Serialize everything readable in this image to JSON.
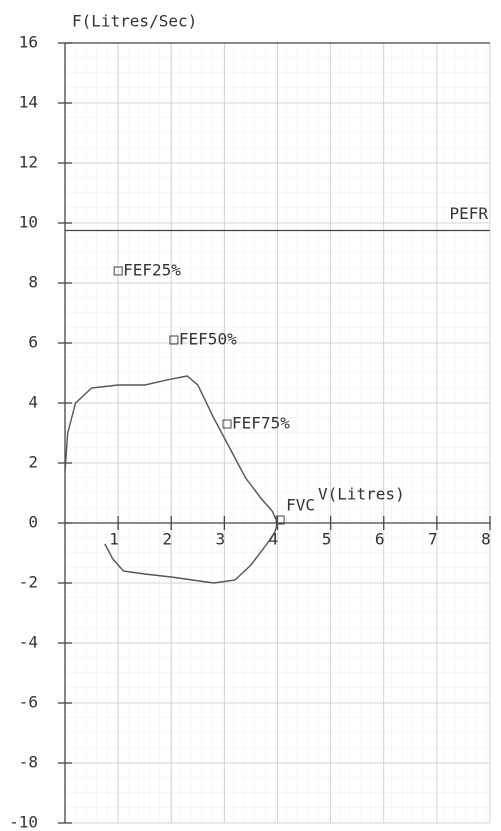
{
  "chart_data": {
    "type": "line",
    "y_label": "F(Litres/Sec)",
    "x_label": "V(Litres)",
    "xlim": [
      0,
      8
    ],
    "xticks": [
      1,
      2,
      3,
      4,
      5,
      6,
      7,
      8
    ],
    "ylim": [
      -10,
      16
    ],
    "yticks": [
      -10,
      -8,
      -6,
      -4,
      -2,
      0,
      2,
      4,
      6,
      8,
      10,
      12,
      14,
      16
    ],
    "grid": true,
    "series": [
      {
        "color": "#555555",
        "x": [
          0.0,
          0.05,
          0.2,
          0.5,
          1.0,
          1.5,
          2.0,
          2.3,
          2.5,
          2.8,
          3.1,
          3.4,
          3.7,
          3.9,
          4.0,
          3.95,
          3.8,
          3.5,
          3.2,
          2.8,
          2.4,
          2.0,
          1.5,
          1.1,
          0.9,
          0.75
        ],
        "values": [
          1.7,
          3.0,
          4.0,
          4.5,
          4.6,
          4.6,
          4.8,
          4.9,
          4.6,
          3.5,
          2.5,
          1.5,
          0.8,
          0.4,
          0.0,
          -0.3,
          -0.7,
          -1.4,
          -1.9,
          -2.0,
          -1.9,
          -1.8,
          -1.7,
          -1.6,
          -1.2,
          -0.7
        ]
      }
    ],
    "reference_line": {
      "label": "PEFR",
      "value": 9.75
    },
    "markers": [
      {
        "label": "FEF25%",
        "x": 1.0,
        "y": 8.4
      },
      {
        "label": "FEF50%",
        "x": 2.05,
        "y": 6.1
      },
      {
        "label": "FEF75%",
        "x": 3.05,
        "y": 3.3
      },
      {
        "label": "FVC",
        "x": 4.05,
        "y": 0.1
      }
    ]
  }
}
